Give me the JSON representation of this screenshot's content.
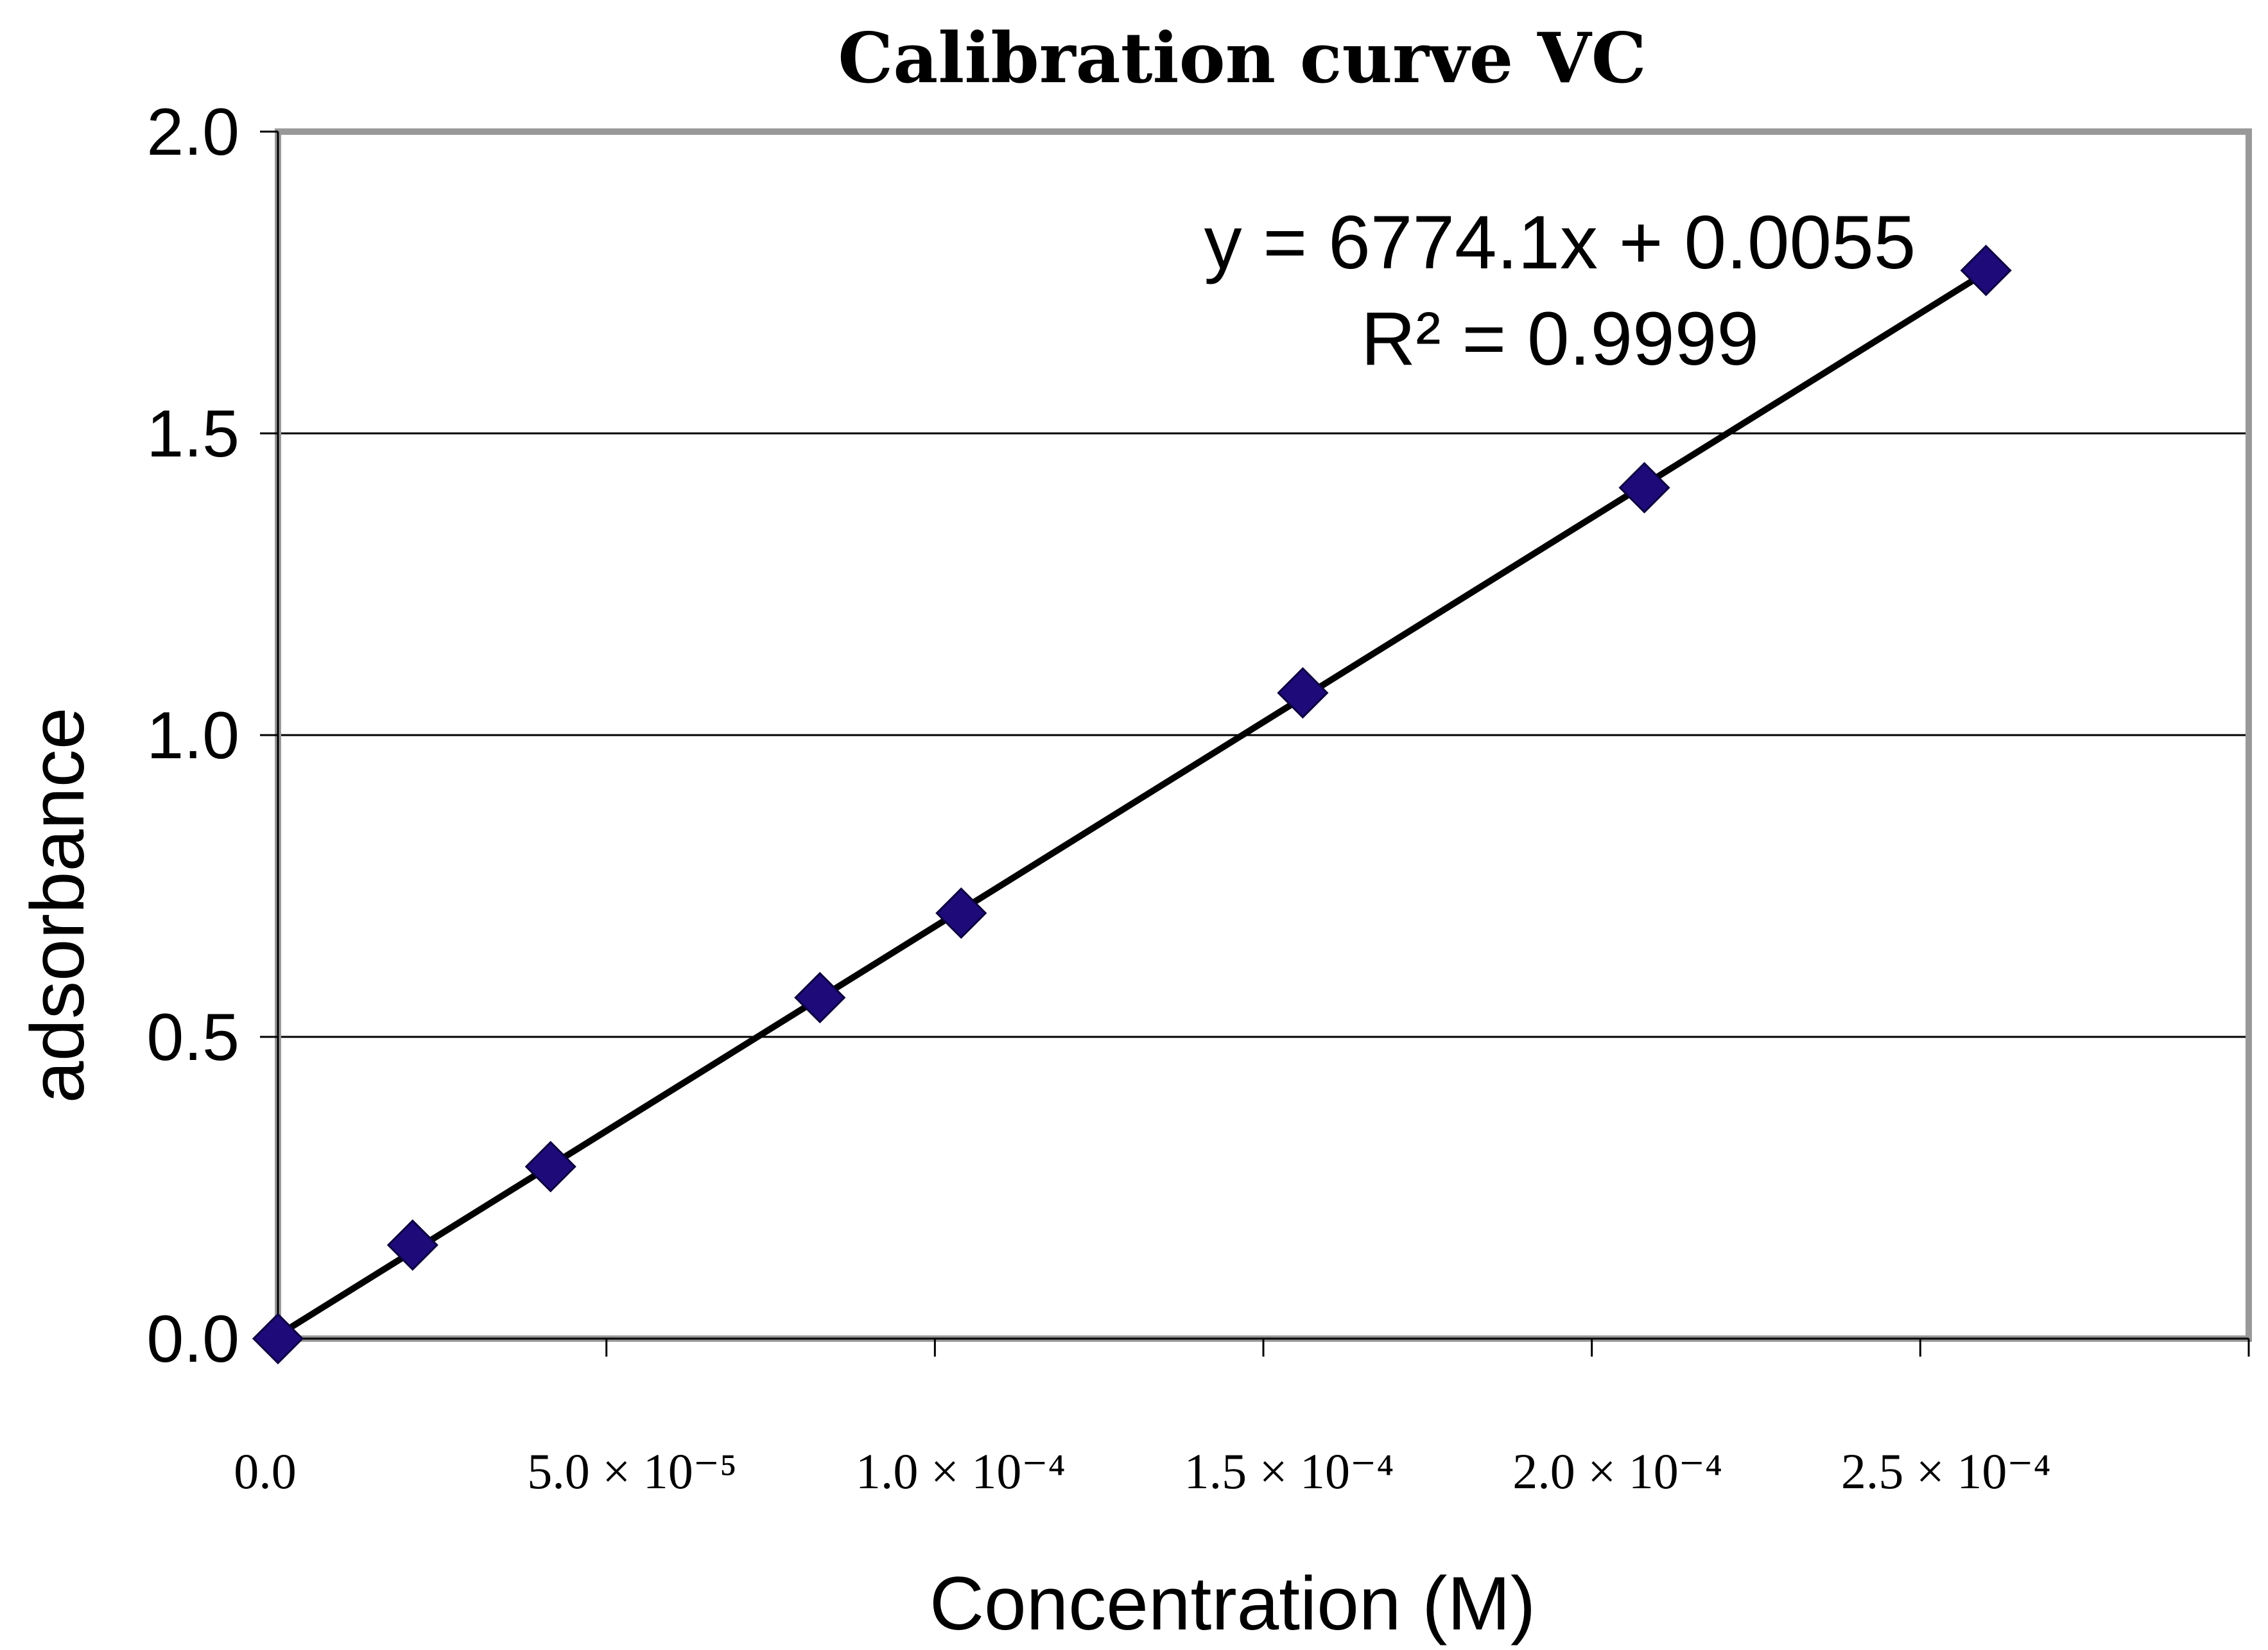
{
  "chart_data": {
    "type": "scatter",
    "title": "Calibration curve VC",
    "xlabel": "Concentration (M)",
    "ylabel": "adsorbance",
    "xlim": [
      0,
      0.0003
    ],
    "ylim": [
      0,
      2.0
    ],
    "grid": "horizontal",
    "y_ticks": [
      {
        "value": 0.0,
        "label": "0.0"
      },
      {
        "value": 0.5,
        "label": "0.5"
      },
      {
        "value": 1.0,
        "label": "1.0"
      },
      {
        "value": 1.5,
        "label": "1.5"
      },
      {
        "value": 2.0,
        "label": "2.0"
      }
    ],
    "x_ticks": [
      {
        "value": 0,
        "label": "0.0"
      },
      {
        "value": 5e-05,
        "label": "5.0 × 10⁻⁵"
      },
      {
        "value": 0.0001,
        "label": "1.0 × 10⁻⁴"
      },
      {
        "value": 0.00015,
        "label": "1.5 × 10⁻⁴"
      },
      {
        "value": 0.0002,
        "label": "2.0 × 10⁻⁴"
      },
      {
        "value": 0.00025,
        "label": "2.5 × 10⁻⁴"
      }
    ],
    "series": [
      {
        "name": "VC",
        "marker": "diamond",
        "color": "#1f0a7a",
        "x": [
          0,
          2.05e-05,
          4.15e-05,
          8.25e-05,
          0.000104,
          0.000156,
          0.000208,
          0.00026
        ],
        "y": [
          0.0,
          0.155,
          0.285,
          0.565,
          0.705,
          1.07,
          1.41,
          1.77
        ]
      }
    ],
    "trendline": {
      "slope": 6774.1,
      "intercept": 0.0055,
      "x_range": [
        0,
        0.00026
      ],
      "color": "#000000",
      "equation": "y = 6774.1x + 0.0055",
      "r_squared": "R² = 0.9999"
    }
  }
}
